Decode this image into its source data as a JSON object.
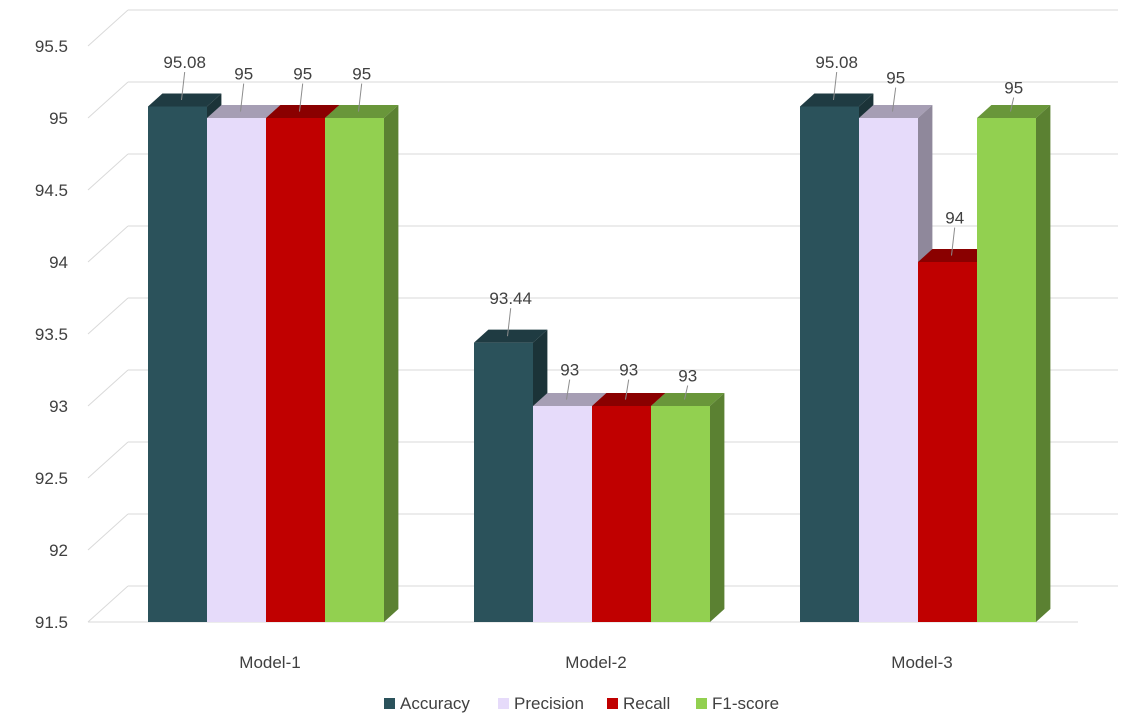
{
  "chart_data": {
    "type": "bar",
    "title": "",
    "xlabel": "",
    "ylabel": "",
    "categories": [
      "Model-1",
      "Model-2",
      "Model-3"
    ],
    "series": [
      {
        "name": "Accuracy",
        "values": [
          95.08,
          93.44,
          95.08
        ],
        "labels": [
          "95.08",
          "93.44",
          "95.08"
        ],
        "color": "#2B525B"
      },
      {
        "name": "Precision",
        "values": [
          95,
          93,
          95
        ],
        "labels": [
          "95",
          "93",
          "95"
        ],
        "color": "#E6DBFA"
      },
      {
        "name": "Recall",
        "values": [
          95,
          93,
          94
        ],
        "labels": [
          "95",
          "93",
          "94"
        ],
        "color": "#C00000"
      },
      {
        "name": "F1-score",
        "values": [
          95,
          93,
          95
        ],
        "labels": [
          "95",
          "93",
          "95"
        ],
        "color": "#92D050"
      }
    ],
    "ylim": [
      91.5,
      95.5
    ],
    "yticks": [
      "91.5",
      "92",
      "92.5",
      "93",
      "93.5",
      "94",
      "94.5",
      "95",
      "95.5"
    ],
    "grid": true,
    "legend_position": "bottom",
    "style": "3d-clustered-column"
  }
}
